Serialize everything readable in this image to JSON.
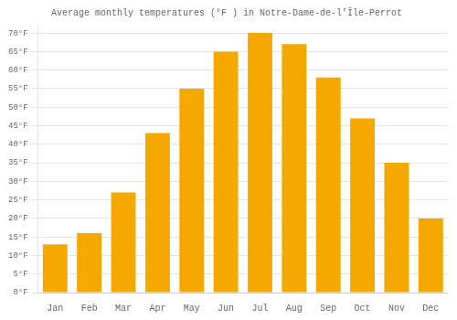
{
  "chart_data": {
    "type": "bar",
    "title": "Average monthly temperatures (°F ) in Notre-Dame-de-l’Île-Perrot",
    "categories": [
      "Jan",
      "Feb",
      "Mar",
      "Apr",
      "May",
      "Jun",
      "Jul",
      "Aug",
      "Sep",
      "Oct",
      "Nov",
      "Dec"
    ],
    "values": [
      13,
      16,
      27,
      43,
      55,
      65,
      70,
      67,
      58,
      47,
      35,
      20
    ],
    "color": "#F5A800",
    "ylim": [
      0,
      72
    ],
    "yticks": [
      {
        "value": 0,
        "label": "0°F"
      },
      {
        "value": 5,
        "label": "5°F"
      },
      {
        "value": 10,
        "label": "10°F"
      },
      {
        "value": 15,
        "label": "15°F"
      },
      {
        "value": 20,
        "label": "20°F"
      },
      {
        "value": 25,
        "label": "25°F"
      },
      {
        "value": 30,
        "label": "30°F"
      },
      {
        "value": 35,
        "label": "35°F"
      },
      {
        "value": 40,
        "label": "40°F"
      },
      {
        "value": 45,
        "label": "45°F"
      },
      {
        "value": 50,
        "label": "50°F"
      },
      {
        "value": 55,
        "label": "55°F"
      },
      {
        "value": 60,
        "label": "60°F"
      },
      {
        "value": 65,
        "label": "65°F"
      },
      {
        "value": 70,
        "label": "70°F"
      }
    ],
    "grid": true
  }
}
